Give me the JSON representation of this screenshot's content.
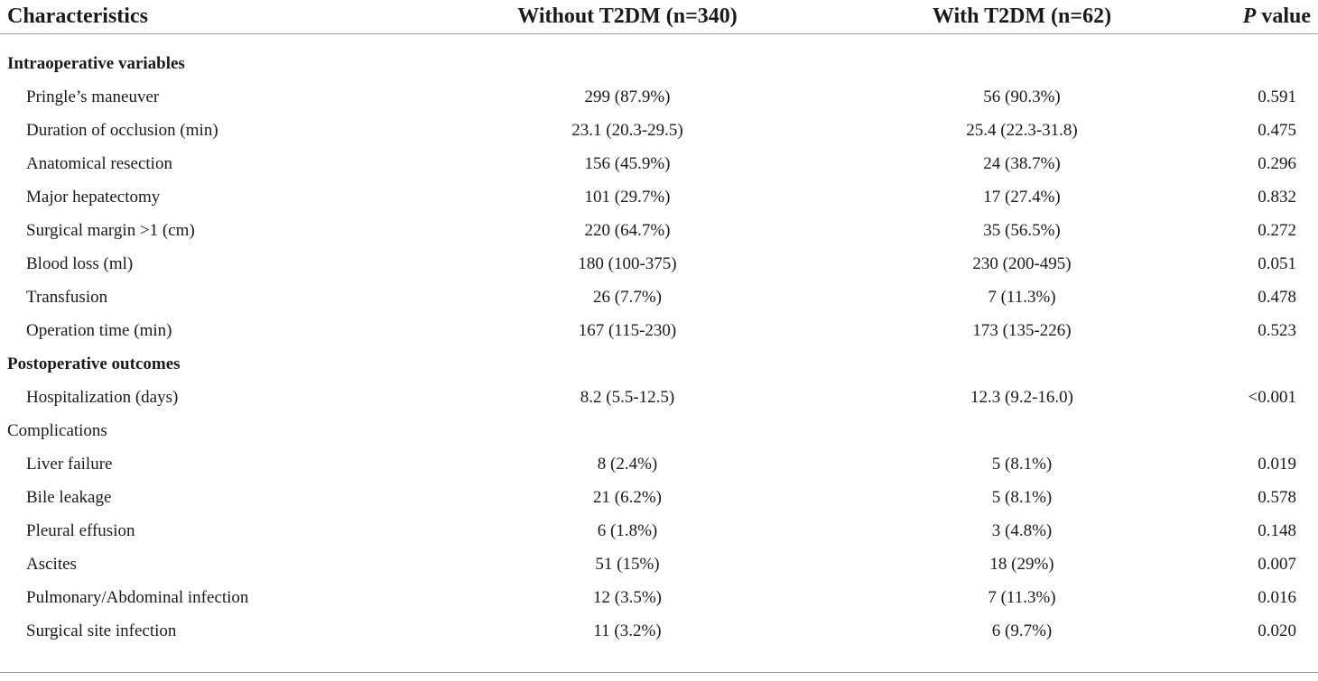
{
  "table": {
    "headers": {
      "characteristics": "Characteristics",
      "without": "Without T2DM (n=340)",
      "with": "With T2DM (n=62)",
      "p_italic": "P",
      "p_rest": " value"
    },
    "rows": [
      {
        "type": "section",
        "label": "Intraoperative variables"
      },
      {
        "type": "item",
        "label": "Pringle’s maneuver",
        "without": "299 (87.9%)",
        "with": "56 (90.3%)",
        "p": "0.591"
      },
      {
        "type": "item",
        "label": "Duration of occlusion (min)",
        "without": "23.1 (20.3-29.5)",
        "with": "25.4 (22.3-31.8)",
        "p": "0.475"
      },
      {
        "type": "item",
        "label": "Anatomical resection",
        "without": "156 (45.9%)",
        "with": "24 (38.7%)",
        "p": "0.296"
      },
      {
        "type": "item",
        "label": "Major hepatectomy",
        "without": "101 (29.7%)",
        "with": "17 (27.4%)",
        "p": "0.832"
      },
      {
        "type": "item",
        "label": "Surgical margin >1 (cm)",
        "without": "220 (64.7%)",
        "with": "35 (56.5%)",
        "p": "0.272"
      },
      {
        "type": "item",
        "label": "Blood loss (ml)",
        "without": "180 (100-375)",
        "with": "230 (200-495)",
        "p": "0.051"
      },
      {
        "type": "item",
        "label": "Transfusion",
        "without": "26 (7.7%)",
        "with": "7 (11.3%)",
        "p": "0.478"
      },
      {
        "type": "item",
        "label": "Operation time (min)",
        "without": "167 (115-230)",
        "with": "173 (135-226)",
        "p": "0.523"
      },
      {
        "type": "section",
        "label": "Postoperative outcomes"
      },
      {
        "type": "item",
        "label": "Hospitalization (days)",
        "without": "8.2 (5.5-12.5)",
        "with": "12.3 (9.2-16.0)",
        "p": "<0.001"
      },
      {
        "type": "plain",
        "label": "Complications"
      },
      {
        "type": "item",
        "label": "Liver failure",
        "without": "8 (2.4%)",
        "with": "5 (8.1%)",
        "p": "0.019"
      },
      {
        "type": "item",
        "label": "Bile leakage",
        "without": "21 (6.2%)",
        "with": "5 (8.1%)",
        "p": "0.578"
      },
      {
        "type": "item",
        "label": "Pleural effusion",
        "without": "6 (1.8%)",
        "with": "3 (4.8%)",
        "p": "0.148"
      },
      {
        "type": "item",
        "label": "Ascites",
        "without": "51 (15%)",
        "with": "18 (29%)",
        "p": "0.007"
      },
      {
        "type": "item",
        "label": "Pulmonary/Abdominal infection",
        "without": "12 (3.5%)",
        "with": "7 (11.3%)",
        "p": "0.016"
      },
      {
        "type": "item",
        "label": "Surgical site infection",
        "without": "11 (3.2%)",
        "with": "6 (9.7%)",
        "p": "0.020"
      }
    ]
  }
}
